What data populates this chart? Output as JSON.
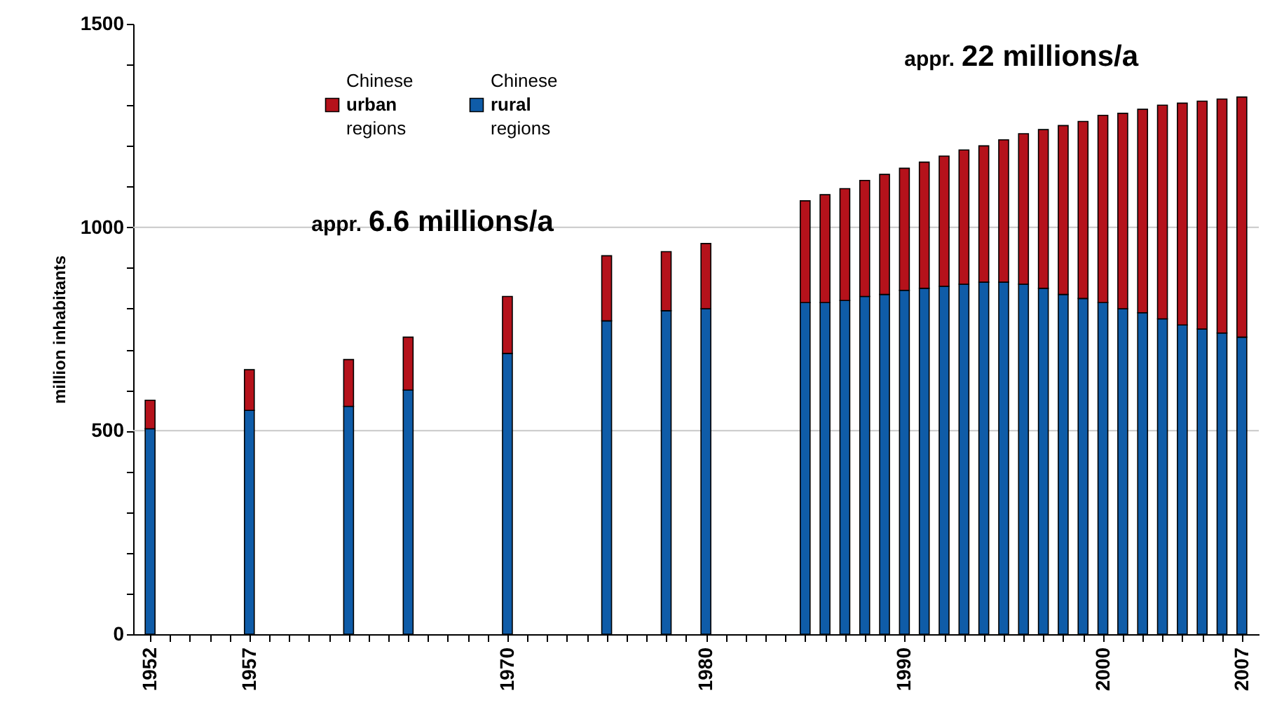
{
  "chart_data": {
    "type": "bar",
    "stacked": true,
    "x": [
      1952,
      1957,
      1962,
      1965,
      1970,
      1975,
      1978,
      1980,
      1985,
      1986,
      1987,
      1988,
      1989,
      1990,
      1991,
      1992,
      1993,
      1994,
      1995,
      1996,
      1997,
      1998,
      1999,
      2000,
      2001,
      2002,
      2003,
      2004,
      2005,
      2006,
      2007
    ],
    "series": [
      {
        "name": "Chinese rural regions",
        "color": "#0f5ca8",
        "values": [
          505,
          550,
          560,
          600,
          690,
          770,
          795,
          800,
          815,
          815,
          820,
          830,
          835,
          845,
          850,
          855,
          860,
          865,
          865,
          860,
          850,
          835,
          825,
          815,
          800,
          790,
          775,
          760,
          750,
          740,
          730
        ]
      },
      {
        "name": "Chinese urban regions",
        "color": "#b5121b",
        "values": [
          70,
          100,
          115,
          130,
          140,
          160,
          145,
          160,
          250,
          265,
          275,
          285,
          295,
          300,
          310,
          320,
          330,
          335,
          350,
          370,
          390,
          415,
          435,
          460,
          480,
          500,
          525,
          545,
          560,
          575,
          590
        ]
      }
    ],
    "ylabel": "million inhabitants",
    "xlim": [
      1951.5,
      2007.5
    ],
    "xticks": [
      1952,
      {
        "value": 1953,
        "label": null
      },
      {
        "value": 1954,
        "label": null
      },
      {
        "value": 1955,
        "label": null
      },
      {
        "value": 1956,
        "label": null
      },
      1957,
      {
        "value": 1958,
        "label": null
      },
      {
        "value": 1959,
        "label": null
      },
      {
        "value": 1960,
        "label": null
      },
      {
        "value": 1961,
        "label": null
      },
      {
        "value": 1962,
        "label": null
      },
      {
        "value": 1963,
        "label": null
      },
      {
        "value": 1964,
        "label": null
      },
      {
        "value": 1965,
        "label": null
      },
      {
        "value": 1966,
        "label": null
      },
      {
        "value": 1967,
        "label": null
      },
      {
        "value": 1968,
        "label": null
      },
      {
        "value": 1969,
        "label": null
      },
      1970,
      {
        "value": 1971,
        "label": null
      },
      {
        "value": 1972,
        "label": null
      },
      {
        "value": 1973,
        "label": null
      },
      {
        "value": 1974,
        "label": null
      },
      {
        "value": 1975,
        "label": null
      },
      {
        "value": 1976,
        "label": null
      },
      {
        "value": 1977,
        "label": null
      },
      {
        "value": 1978,
        "label": null
      },
      {
        "value": 1979,
        "label": null
      },
      1980,
      {
        "value": 1981,
        "label": null
      },
      {
        "value": 1982,
        "label": null
      },
      {
        "value": 1983,
        "label": null
      },
      {
        "value": 1984,
        "label": null
      },
      {
        "value": 1985,
        "label": null
      },
      {
        "value": 1986,
        "label": null
      },
      {
        "value": 1987,
        "label": null
      },
      {
        "value": 1988,
        "label": null
      },
      {
        "value": 1989,
        "label": null
      },
      1990,
      {
        "value": 1991,
        "label": null
      },
      {
        "value": 1992,
        "label": null
      },
      {
        "value": 1993,
        "label": null
      },
      {
        "value": 1994,
        "label": null
      },
      {
        "value": 1995,
        "label": null
      },
      {
        "value": 1996,
        "label": null
      },
      {
        "value": 1997,
        "label": null
      },
      {
        "value": 1998,
        "label": null
      },
      {
        "value": 1999,
        "label": null
      },
      2000,
      {
        "value": 2001,
        "label": null
      },
      {
        "value": 2002,
        "label": null
      },
      {
        "value": 2003,
        "label": null
      },
      {
        "value": 2004,
        "label": null
      },
      {
        "value": 2005,
        "label": null
      },
      {
        "value": 2006,
        "label": null
      },
      2007
    ],
    "ylim": [
      0,
      1500
    ],
    "yticks": [
      0,
      {
        "value": 100,
        "label": null
      },
      {
        "value": 200,
        "label": null
      },
      {
        "value": 300,
        "label": null
      },
      {
        "value": 400,
        "label": null
      },
      500,
      {
        "value": 600,
        "label": null
      },
      {
        "value": 700,
        "label": null
      },
      {
        "value": 800,
        "label": null
      },
      {
        "value": 900,
        "label": null
      },
      1000,
      {
        "value": 1100,
        "label": null
      },
      {
        "value": 1200,
        "label": null
      },
      {
        "value": 1300,
        "label": null
      },
      {
        "value": 1400,
        "label": null
      },
      1500
    ],
    "grid": "y",
    "legend": "top left",
    "annotations": [
      "appr. 6.6 millions/a",
      "appr. 22 millions/a"
    ]
  }
}
